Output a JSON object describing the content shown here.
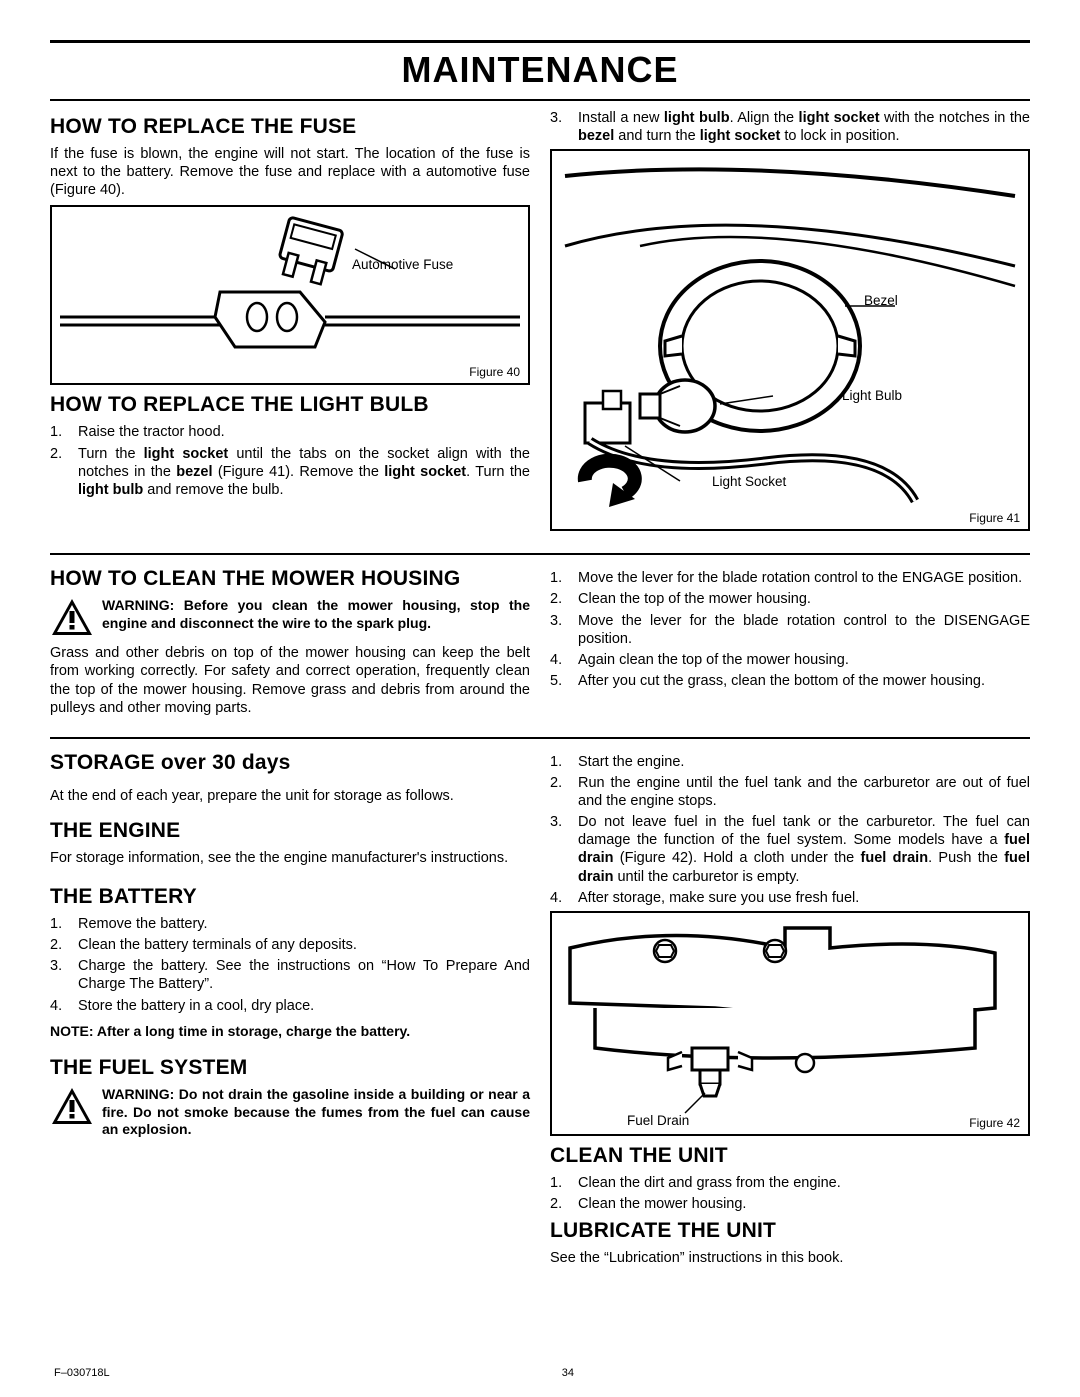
{
  "page_title": "MAINTENANCE",
  "fuse": {
    "heading": "HOW TO REPLACE THE FUSE",
    "intro": "If the fuse is blown, the engine will not start. The location of the fuse is next to the battery. Remove the fuse and replace with a automotive fuse (Figure 40).",
    "callout": "Automotive Fuse",
    "fig": "Figure 40"
  },
  "bulb": {
    "heading": "HOW TO REPLACE THE LIGHT BULB",
    "steps_left": [
      "Raise the tractor hood.",
      "Turn the <b>light socket</b> until the tabs on the socket align with the notches in the <b>bezel</b> (Figure 41). Remove the <b>light socket</b>. Turn the <b>light bulb</b> and remove the bulb."
    ],
    "step_right": "Install a new <b>light bulb</b>. Align the <b>light socket</b> with the notches in the <b>bezel</b> and turn the <b>light socket</b> to lock in position.",
    "callouts": {
      "bezel": "Bezel",
      "bulb": "Light Bulb",
      "socket": "Light Socket"
    },
    "fig": "Figure 41"
  },
  "mower": {
    "heading": "HOW TO CLEAN THE MOWER HOUSING",
    "warning": "WARNING: Before you clean the mower housing, stop the engine and disconnect the wire to the spark plug.",
    "intro": "Grass and other debris on top of the mower housing can keep the belt from working correctly. For safety and correct operation, frequently clean the top of the mower housing. Remove grass and debris from around the pulleys and other moving parts.",
    "steps": [
      "Move the lever for the blade rotation control to the ENGAGE position.",
      "Clean the top of the mower housing.",
      "Move the lever for the blade rotation control to the DISENGAGE position.",
      "Again clean the top of the mower housing.",
      "After you cut the grass, clean the bottom of the mower housing."
    ]
  },
  "storage": {
    "heading": "STORAGE over 30 days",
    "intro": "At the end of each year, prepare the unit for storage as follows."
  },
  "engine": {
    "heading": "THE ENGINE",
    "intro": "For storage information, see the the engine manufacturer's instructions."
  },
  "battery": {
    "heading": "THE BATTERY",
    "steps": [
      "Remove the battery.",
      "Clean the battery terminals of any deposits.",
      "Charge the battery. See the instructions on “How To Prepare And Charge The Battery”.",
      "Store the battery in a cool, dry place."
    ],
    "note": "NOTE: After a long time in storage, charge the battery."
  },
  "fuel": {
    "heading": "THE FUEL SYSTEM",
    "warning": "WARNING:  Do not drain the gasoline inside a building or near a fire. Do not smoke because the fumes from the fuel can cause an explosion.",
    "steps": [
      "Start the engine.",
      "Run the engine until the fuel tank and the carburetor are out of fuel and the engine stops.",
      "Do not leave fuel in the fuel tank or the carburetor. The fuel can damage the function of the fuel system. Some models have a <b>fuel drain</b> (Figure 42). Hold a cloth under the <b>fuel drain</b>. Push the <b>fuel drain</b> until the carburetor is empty.",
      "After storage, make sure you use fresh fuel."
    ],
    "callout": "Fuel Drain",
    "fig": "Figure 42"
  },
  "clean": {
    "heading": "CLEAN THE UNIT",
    "steps": [
      "Clean the dirt and grass from the engine.",
      "Clean the mower housing."
    ]
  },
  "lube": {
    "heading": "LUBRICATE THE UNIT",
    "text": "See the “Lubrication” instructions in this book."
  },
  "footer": {
    "code": "F–030718L",
    "page": "34"
  }
}
